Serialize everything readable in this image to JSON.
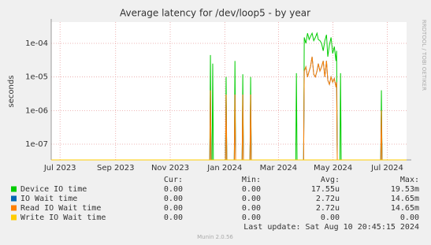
{
  "chart_data": {
    "type": "line",
    "title": "Average latency for /dev/loop5 - by year",
    "y_label": "seconds",
    "side_text": "RRDTOOL / TOBI OETIKER",
    "log_y": true,
    "grid": true,
    "xlim": [
      2023.469,
      2024.556
    ],
    "xticks": [
      {
        "value": 2023.496,
        "label": "Jul 2023"
      },
      {
        "value": 2023.666,
        "label": "Sep 2023"
      },
      {
        "value": 2023.833,
        "label": "Nov 2023"
      },
      {
        "value": 2024.0,
        "label": "Jan 2024"
      },
      {
        "value": 2024.164,
        "label": "Mar 2024"
      },
      {
        "value": 2024.331,
        "label": "May 2024"
      },
      {
        "value": 2024.497,
        "label": "Jul 2024"
      }
    ],
    "ylim": [
      3.4e-08,
      0.00043
    ],
    "yticks": [
      {
        "value": 1e-07,
        "label": "1e-07"
      },
      {
        "value": 1e-06,
        "label": "1e-06"
      },
      {
        "value": 1e-05,
        "label": "1e-05"
      },
      {
        "value": 0.0001,
        "label": "1e-04"
      }
    ],
    "x": [
      2023.469,
      2023.954,
      2023.956,
      2023.958,
      2023.961,
      2023.963,
      2023.965,
      2024.002,
      2024.004,
      2024.006,
      2024.029,
      2024.031,
      2024.033,
      2024.053,
      2024.055,
      2024.057,
      2024.077,
      2024.079,
      2024.081,
      2024.217,
      2024.219,
      2024.221,
      2024.241,
      2024.243,
      2024.248,
      2024.253,
      2024.258,
      2024.262,
      2024.267,
      2024.272,
      2024.277,
      2024.282,
      2024.286,
      2024.291,
      2024.296,
      2024.301,
      2024.306,
      2024.311,
      2024.315,
      2024.32,
      2024.325,
      2024.33,
      2024.335,
      2024.34,
      2024.342,
      2024.344,
      2024.352,
      2024.354,
      2024.356,
      2024.477,
      2024.479,
      2024.481,
      2024.556
    ],
    "series": [
      {
        "name": "Device IO time",
        "color": "#00cc00",
        "values": [
          0,
          0,
          4.5e-05,
          0,
          0,
          2.5e-05,
          0,
          0,
          1e-05,
          0,
          0,
          3e-05,
          0,
          0,
          1.2e-05,
          0,
          0,
          1e-05,
          0,
          0,
          1.3e-05,
          0,
          0,
          0.00015,
          0.0001,
          0.0002,
          0.00013,
          0.00016,
          0.0002,
          0.00012,
          0.00015,
          0.0002,
          0.00013,
          0.00012,
          0.0001,
          6e-05,
          0.00012,
          0.00018,
          4e-05,
          9e-05,
          0.00015,
          5e-05,
          8e-05,
          3e-05,
          6e-05,
          0,
          0,
          1.3e-05,
          0,
          0,
          4e-06,
          0,
          0
        ]
      },
      {
        "name": "IO Wait time",
        "color": "#0066b3",
        "values": [
          0,
          0,
          4e-06,
          0,
          0,
          0,
          0,
          0,
          3e-06,
          0,
          0,
          3e-06,
          0,
          0,
          3e-06,
          0,
          0,
          3e-06,
          0,
          0,
          0,
          0,
          0,
          1.5e-05,
          2e-05,
          1e-05,
          1.5e-05,
          2e-05,
          4e-05,
          1.2e-05,
          1e-05,
          1.5e-05,
          2.5e-05,
          1.5e-05,
          2e-05,
          3e-05,
          1e-05,
          3e-05,
          8e-06,
          6e-06,
          1e-05,
          7e-06,
          9e-06,
          5e-06,
          7e-06,
          0,
          0,
          0,
          0,
          0,
          1e-06,
          0,
          0
        ]
      },
      {
        "name": "Read IO Wait time",
        "color": "#ff8000",
        "values": [
          0,
          0,
          4e-06,
          0,
          0,
          0,
          0,
          0,
          3e-06,
          0,
          0,
          3e-06,
          0,
          0,
          3e-06,
          0,
          0,
          3e-06,
          0,
          0,
          0,
          0,
          0,
          1.5e-05,
          2e-05,
          1e-05,
          1.5e-05,
          2e-05,
          4e-05,
          1.2e-05,
          1e-05,
          1.5e-05,
          2.5e-05,
          1.5e-05,
          2e-05,
          3e-05,
          1e-05,
          3e-05,
          8e-06,
          6e-06,
          1e-05,
          7e-06,
          9e-06,
          5e-06,
          7e-06,
          0,
          0,
          0,
          0,
          0,
          1e-06,
          0,
          0
        ]
      },
      {
        "name": "Write IO Wait time",
        "color": "#ffcc00",
        "values": [
          0,
          0,
          0,
          0,
          0,
          0,
          0,
          0,
          0,
          0,
          0,
          0,
          0,
          0,
          0,
          0,
          0,
          0,
          0,
          0,
          0,
          0,
          0,
          0,
          0,
          0,
          0,
          0,
          0,
          0,
          0,
          0,
          0,
          0,
          0,
          0,
          0,
          0,
          0,
          0,
          0,
          0,
          0,
          0,
          0,
          0,
          0,
          0,
          0,
          0,
          0,
          0,
          0
        ]
      }
    ],
    "legend": {
      "headers": [
        "Cur:",
        "Min:",
        "Avg:",
        "Max:"
      ],
      "rows": [
        [
          "0.00",
          "0.00",
          "17.55u",
          "19.53m"
        ],
        [
          "0.00",
          "0.00",
          "2.72u",
          "14.65m"
        ],
        [
          "0.00",
          "0.00",
          "2.72u",
          "14.65m"
        ],
        [
          "0.00",
          "0.00",
          "0.00",
          "0.00"
        ]
      ]
    },
    "last_update": "Last update: Sat Aug 10 20:45:15 2024",
    "footer": "Munin 2.0.56"
  }
}
